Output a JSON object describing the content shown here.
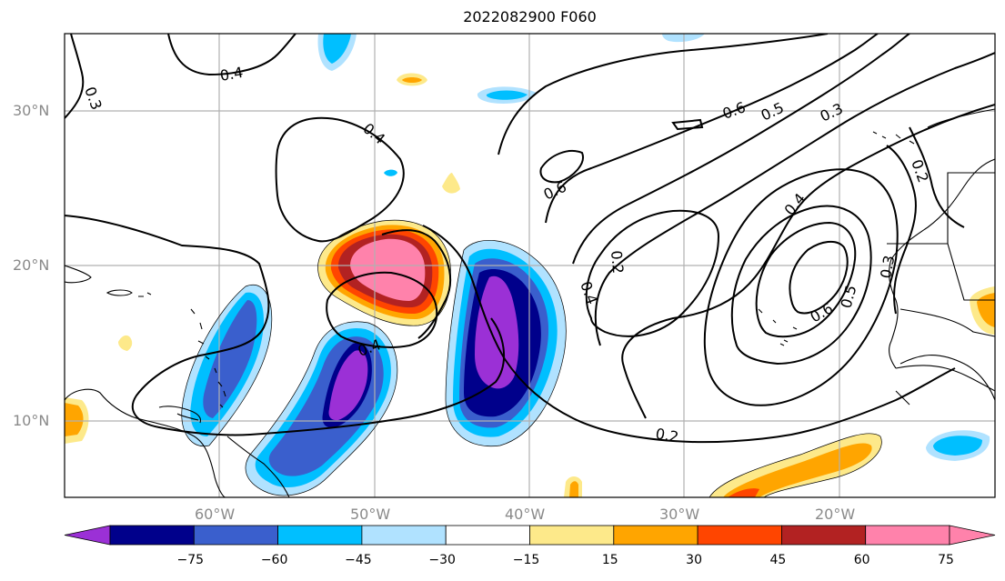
{
  "title": "2022082900 F060",
  "map": {
    "lat_labels": [
      "30°N",
      "20°N",
      "10°N"
    ],
    "lon_labels": [
      "60°W",
      "50°W",
      "40°W",
      "30°W",
      "20°W"
    ],
    "contour_labels": [
      "0.3",
      "0.4",
      "0.4",
      "0.4",
      "0.6",
      "0.5",
      "0.3",
      "0.6",
      "0.2",
      "0.4",
      "0.4",
      "0.2",
      "0.3",
      "0.6",
      "0.5",
      "0.2",
      "0.3",
      "0.2"
    ]
  },
  "colorbar": {
    "ticks": [
      "−75",
      "−60",
      "−45",
      "−30",
      "−15",
      "15",
      "30",
      "45",
      "60",
      "75"
    ],
    "colors": [
      "#9b30d6",
      "#00008b",
      "#3a5fcd",
      "#00bfff",
      "#b0e2ff",
      "#ffffff",
      "#fde98a",
      "#ffa500",
      "#ff4500",
      "#b22222",
      "#ff82ab",
      "#ff82ab"
    ]
  }
}
